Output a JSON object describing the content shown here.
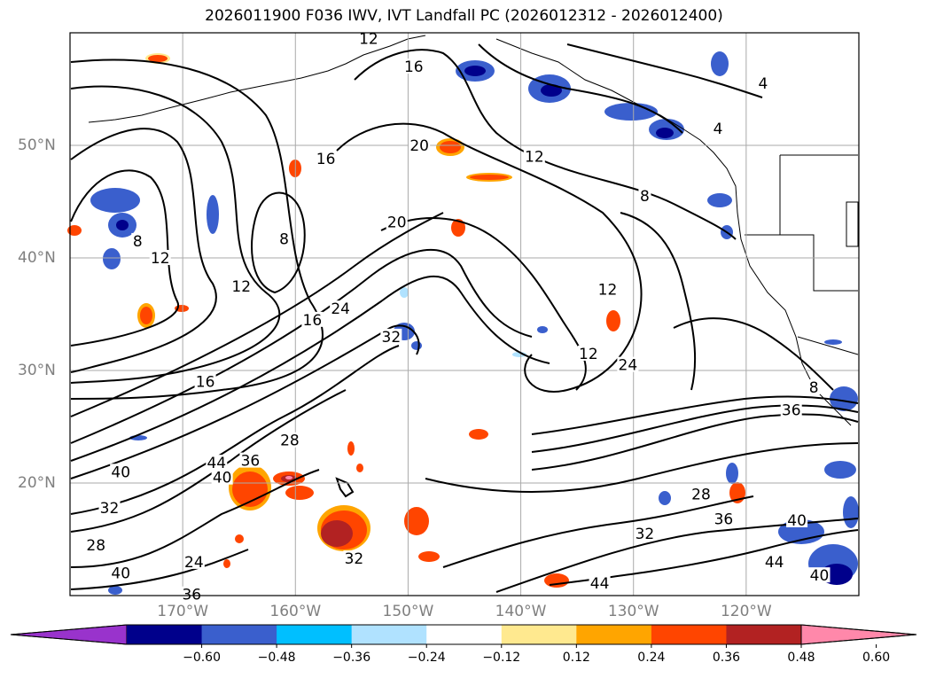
{
  "title": "2026011900 F036 IWV, IVT Landfall PC (2026012312 - 2026012400)",
  "map": {
    "lon_range": [
      -180,
      -110
    ],
    "lat_range": [
      10,
      60
    ],
    "lon_ticks": [
      {
        "lon": -170,
        "label": "170°W"
      },
      {
        "lon": -160,
        "label": "160°W"
      },
      {
        "lon": -150,
        "label": "150°W"
      },
      {
        "lon": -140,
        "label": "140°W"
      },
      {
        "lon": -130,
        "label": "130°W"
      },
      {
        "lon": -120,
        "label": "120°W"
      }
    ],
    "lat_ticks": [
      {
        "lat": 20,
        "label": "20°N"
      },
      {
        "lat": 30,
        "label": "30°N"
      },
      {
        "lat": 40,
        "label": "40°N"
      },
      {
        "lat": 50,
        "label": "50°N"
      }
    ],
    "grid": true,
    "contour_labels": [
      {
        "text": "12",
        "lon": -153.5,
        "lat": 59.5
      },
      {
        "text": "16",
        "lon": -149.5,
        "lat": 57.0
      },
      {
        "text": "4",
        "lon": -118.5,
        "lat": 55.5
      },
      {
        "text": "4",
        "lon": -122.5,
        "lat": 51.5
      },
      {
        "text": "20",
        "lon": -149.0,
        "lat": 50.0
      },
      {
        "text": "12",
        "lon": -138.8,
        "lat": 49.0
      },
      {
        "text": "16",
        "lon": -157.3,
        "lat": 48.8
      },
      {
        "text": "8",
        "lon": -129.0,
        "lat": 45.5
      },
      {
        "text": "20",
        "lon": -151.0,
        "lat": 43.2
      },
      {
        "text": "8",
        "lon": -161.0,
        "lat": 41.7
      },
      {
        "text": "8",
        "lon": -174.0,
        "lat": 41.5
      },
      {
        "text": "12",
        "lon": -172.0,
        "lat": 40.0
      },
      {
        "text": "12",
        "lon": -164.8,
        "lat": 37.5
      },
      {
        "text": "12",
        "lon": -132.3,
        "lat": 37.2
      },
      {
        "text": "16",
        "lon": -158.5,
        "lat": 34.5
      },
      {
        "text": "24",
        "lon": -156.0,
        "lat": 35.5
      },
      {
        "text": "32",
        "lon": -151.5,
        "lat": 33.0
      },
      {
        "text": "12",
        "lon": -134.0,
        "lat": 31.5
      },
      {
        "text": "24",
        "lon": -130.5,
        "lat": 30.5
      },
      {
        "text": "16",
        "lon": -168.0,
        "lat": 29.0
      },
      {
        "text": "8",
        "lon": -114.0,
        "lat": 28.5
      },
      {
        "text": "36",
        "lon": -116.0,
        "lat": 26.5
      },
      {
        "text": "28",
        "lon": -160.5,
        "lat": 23.8
      },
      {
        "text": "36",
        "lon": -164.0,
        "lat": 22.0
      },
      {
        "text": "44",
        "lon": -167.0,
        "lat": 21.8
      },
      {
        "text": "40",
        "lon": -175.5,
        "lat": 21.0
      },
      {
        "text": "40",
        "lon": -166.5,
        "lat": 20.5
      },
      {
        "text": "28",
        "lon": -124.0,
        "lat": 19.0
      },
      {
        "text": "32",
        "lon": -176.5,
        "lat": 17.8
      },
      {
        "text": "36",
        "lon": -122.0,
        "lat": 16.8
      },
      {
        "text": "40",
        "lon": -115.5,
        "lat": 16.7
      },
      {
        "text": "32",
        "lon": -129.0,
        "lat": 15.5
      },
      {
        "text": "28",
        "lon": -177.7,
        "lat": 14.5
      },
      {
        "text": "32",
        "lon": -154.8,
        "lat": 13.3
      },
      {
        "text": "24",
        "lon": -169.0,
        "lat": 13.0
      },
      {
        "text": "44",
        "lon": -117.5,
        "lat": 13.0
      },
      {
        "text": "40",
        "lon": -175.5,
        "lat": 12.0
      },
      {
        "text": "44",
        "lon": -133.0,
        "lat": 11.1
      },
      {
        "text": "36",
        "lon": -169.2,
        "lat": 10.1
      },
      {
        "text": "40",
        "lon": -113.5,
        "lat": 11.8
      }
    ]
  },
  "colorbar": {
    "ticks": [
      "−0.60",
      "−0.48",
      "−0.36",
      "−0.24",
      "−0.12",
      "0.12",
      "0.24",
      "0.36",
      "0.48",
      "0.60"
    ],
    "colors": [
      "#9933cc",
      "#00008b",
      "#3a5fcd",
      "#00bfff",
      "#b0e2ff",
      "#ffffff",
      "#ffe98f",
      "#ffa500",
      "#ff4500",
      "#b22222",
      "#ff88aa"
    ]
  },
  "colors": {
    "positive_anomaly": "#ff4500",
    "negative_anomaly": "#3a5fcd",
    "contour": "#000000",
    "grid": "#aaaaaa"
  }
}
